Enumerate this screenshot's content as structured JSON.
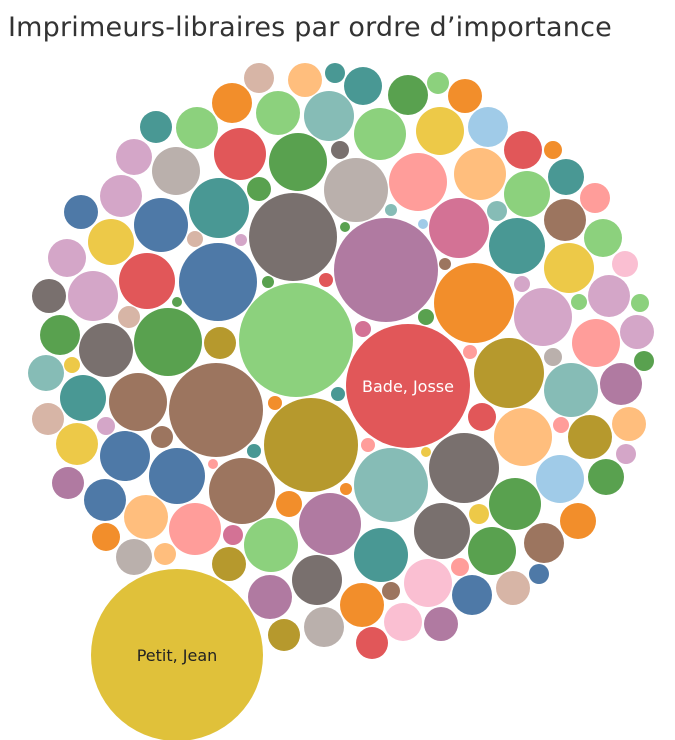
{
  "palette": {
    "blue": "#4e79a7",
    "orange": "#f28e2b",
    "red": "#e15759",
    "teal": "#499894",
    "green": "#59a14f",
    "lightgreen": "#8cd17d",
    "yellow": "#edc948",
    "olive": "#b6992d",
    "purple": "#b07aa1",
    "pink": "#ff9d9a",
    "lightpink": "#fabfd2",
    "brown": "#9c755f",
    "darkbrown": "#79706e",
    "gray": "#bab0ac",
    "seafoam": "#86bcb6",
    "lightblue": "#a0cbe8",
    "peach": "#ffbe7d",
    "magenta": "#d37295",
    "lilac": "#d4a6c8",
    "tan": "#d7b5a6",
    "gold": "#e0c13a"
  },
  "chart_data": {
    "type": "bubble",
    "title": "Imprimeurs-libraires par ordre d’importance",
    "labels": [
      {
        "text": "Petit, Jean",
        "value": 86,
        "color": "gold"
      },
      {
        "text": "Bade, Josse",
        "value": 62,
        "color": "red"
      }
    ],
    "bubbles": [
      {
        "value": 52,
        "color": "purple"
      },
      {
        "value": 57,
        "color": "lightgreen"
      },
      {
        "value": 47,
        "color": "olive"
      },
      {
        "value": 47,
        "color": "brown"
      },
      {
        "value": 44,
        "color": "darkbrown"
      },
      {
        "value": 40,
        "color": "orange"
      },
      {
        "value": 39,
        "color": "blue"
      },
      {
        "value": 37,
        "color": "seafoam"
      },
      {
        "value": 35,
        "color": "olive"
      },
      {
        "value": 35,
        "color": "darkbrown"
      },
      {
        "value": 34,
        "color": "green"
      },
      {
        "value": 33,
        "color": "brown"
      },
      {
        "value": 32,
        "color": "gray"
      },
      {
        "value": 31,
        "color": "purple"
      },
      {
        "value": 30,
        "color": "magenta"
      },
      {
        "value": 30,
        "color": "teal"
      },
      {
        "value": 29,
        "color": "pink"
      },
      {
        "value": 29,
        "color": "peach"
      },
      {
        "value": 29,
        "color": "lilac"
      },
      {
        "value": 29,
        "color": "green"
      },
      {
        "value": 29,
        "color": "brown"
      },
      {
        "value": 28,
        "color": "blue"
      },
      {
        "value": 28,
        "color": "red"
      },
      {
        "value": 28,
        "color": "teal"
      },
      {
        "value": 28,
        "color": "darkbrown"
      },
      {
        "value": 27,
        "color": "lightgreen"
      },
      {
        "value": 27,
        "color": "teal"
      },
      {
        "value": 27,
        "color": "blue"
      },
      {
        "value": 27,
        "color": "seafoam"
      },
      {
        "value": 27,
        "color": "darkbrown"
      },
      {
        "value": 26,
        "color": "pink"
      },
      {
        "value": 26,
        "color": "red"
      },
      {
        "value": 26,
        "color": "green"
      },
      {
        "value": 26,
        "color": "lightgreen"
      },
      {
        "value": 26,
        "color": "peach"
      },
      {
        "value": 25,
        "color": "darkbrown"
      },
      {
        "value": 25,
        "color": "blue"
      },
      {
        "value": 25,
        "color": "yellow"
      },
      {
        "value": 25,
        "color": "seafoam"
      },
      {
        "value": 25,
        "color": "lilac"
      },
      {
        "value": 24,
        "color": "gray"
      },
      {
        "value": 24,
        "color": "lightpink"
      },
      {
        "value": 24,
        "color": "lightblue"
      },
      {
        "value": 24,
        "color": "yellow"
      },
      {
        "value": 24,
        "color": "green"
      },
      {
        "value": 24,
        "color": "pink"
      },
      {
        "value": 23,
        "color": "lightgreen"
      },
      {
        "value": 23,
        "color": "yellow"
      },
      {
        "value": 23,
        "color": "teal"
      },
      {
        "value": 22,
        "color": "peach"
      },
      {
        "value": 22,
        "color": "lightgreen"
      },
      {
        "value": 22,
        "color": "orange"
      },
      {
        "value": 22,
        "color": "purple"
      },
      {
        "value": 22,
        "color": "olive"
      },
      {
        "value": 21,
        "color": "brown"
      },
      {
        "value": 21,
        "color": "lilac"
      },
      {
        "value": 21,
        "color": "lilac"
      },
      {
        "value": 21,
        "color": "lightgreen"
      },
      {
        "value": 21,
        "color": "yellow"
      },
      {
        "value": 21,
        "color": "blue"
      },
      {
        "value": 21,
        "color": "purple"
      },
      {
        "value": 20,
        "color": "green"
      },
      {
        "value": 20,
        "color": "green"
      },
      {
        "value": 20,
        "color": "lightblue"
      },
      {
        "value": 20,
        "color": "brown"
      },
      {
        "value": 20,
        "color": "blue"
      },
      {
        "value": 20,
        "color": "orange"
      },
      {
        "value": 20,
        "color": "gray"
      },
      {
        "value": 19,
        "color": "red"
      },
      {
        "value": 19,
        "color": "teal"
      },
      {
        "value": 19,
        "color": "lightpink"
      },
      {
        "value": 19,
        "color": "lightgreen"
      },
      {
        "value": 19,
        "color": "lilac"
      },
      {
        "value": 18,
        "color": "lilac"
      },
      {
        "value": 18,
        "color": "teal"
      },
      {
        "value": 18,
        "color": "seafoam"
      },
      {
        "value": 18,
        "color": "orange"
      },
      {
        "value": 18,
        "color": "green"
      },
      {
        "value": 18,
        "color": "gray"
      },
      {
        "value": 17,
        "color": "olive"
      },
      {
        "value": 17,
        "color": "peach"
      },
      {
        "value": 17,
        "color": "darkbrown"
      },
      {
        "value": 17,
        "color": "peach"
      },
      {
        "value": 17,
        "color": "lilac"
      },
      {
        "value": 17,
        "color": "blue"
      },
      {
        "value": 17,
        "color": "orange"
      },
      {
        "value": 17,
        "color": "tan"
      },
      {
        "value": 17,
        "color": "purple"
      },
      {
        "value": 16,
        "color": "olive"
      },
      {
        "value": 16,
        "color": "tan"
      },
      {
        "value": 16,
        "color": "olive"
      },
      {
        "value": 16,
        "color": "teal"
      },
      {
        "value": 16,
        "color": "purple"
      },
      {
        "value": 16,
        "color": "red"
      },
      {
        "value": 16,
        "color": "yellow"
      },
      {
        "value": 16,
        "color": "olive"
      },
      {
        "value": 16,
        "color": "magenta"
      },
      {
        "value": 16,
        "color": "yellow"
      },
      {
        "value": 16,
        "color": "blue"
      },
      {
        "value": 15,
        "color": "tan"
      },
      {
        "value": 15,
        "color": "pink"
      },
      {
        "value": 15,
        "color": "lightblue"
      },
      {
        "value": 15,
        "color": "green"
      },
      {
        "value": 15,
        "color": "lightgreen"
      },
      {
        "value": 15,
        "color": "magenta"
      },
      {
        "value": 15,
        "color": "olive"
      },
      {
        "value": 15,
        "color": "purple"
      },
      {
        "value": 15,
        "color": "red"
      },
      {
        "value": 15,
        "color": "olive"
      },
      {
        "value": 15,
        "color": "green"
      },
      {
        "value": 15,
        "color": "blue"
      },
      {
        "value": 15,
        "color": "yellow"
      },
      {
        "value": 14,
        "color": "red"
      },
      {
        "value": 14,
        "color": "orange"
      },
      {
        "value": 14,
        "color": "peach"
      },
      {
        "value": 14,
        "color": "darkbrown"
      },
      {
        "value": 14,
        "color": "lightgreen"
      },
      {
        "value": 14,
        "color": "seafoam"
      },
      {
        "value": 14,
        "color": "olive"
      },
      {
        "value": 14,
        "color": "brown"
      },
      {
        "value": 14,
        "color": "magenta"
      },
      {
        "value": 14,
        "color": "magenta"
      },
      {
        "value": 14,
        "color": "teal"
      },
      {
        "value": 13,
        "color": "orange"
      },
      {
        "value": 13,
        "color": "lightpink"
      },
      {
        "value": 13,
        "color": "lightgreen"
      },
      {
        "value": 13,
        "color": "lightblue"
      },
      {
        "value": 13,
        "color": "teal"
      },
      {
        "value": 13,
        "color": "lilac"
      },
      {
        "value": 13,
        "color": "pink"
      },
      {
        "value": 13,
        "color": "tan"
      },
      {
        "value": 13,
        "color": "teal"
      },
      {
        "value": 13,
        "color": "tan"
      },
      {
        "value": 12,
        "color": "green"
      },
      {
        "value": 12,
        "color": "olive"
      },
      {
        "value": 12,
        "color": "green"
      },
      {
        "value": 12,
        "color": "red"
      },
      {
        "value": 12,
        "color": "red"
      },
      {
        "value": 12,
        "color": "gray"
      },
      {
        "value": 12,
        "color": "darkbrown"
      },
      {
        "value": 12,
        "color": "tan"
      },
      {
        "value": 12,
        "color": "gray"
      },
      {
        "value": 12,
        "color": "pink"
      },
      {
        "value": 12,
        "color": "purple"
      },
      {
        "value": 12,
        "color": "purple"
      },
      {
        "value": 11,
        "color": "brown"
      },
      {
        "value": 11,
        "color": "tan"
      },
      {
        "value": 11,
        "color": "peach"
      },
      {
        "value": 11,
        "color": "lightgreen"
      },
      {
        "value": 11,
        "color": "orange"
      },
      {
        "value": 11,
        "color": "blue"
      },
      {
        "value": 11,
        "color": "lightpink"
      },
      {
        "value": 11,
        "color": "peach"
      },
      {
        "value": 11,
        "color": "green"
      },
      {
        "value": 11,
        "color": "tan"
      },
      {
        "value": 11,
        "color": "pink"
      },
      {
        "value": 11,
        "color": "yellow"
      },
      {
        "value": 11,
        "color": "green"
      },
      {
        "value": 11,
        "color": "red"
      },
      {
        "value": 10,
        "color": "yellow"
      },
      {
        "value": 10,
        "color": "magenta"
      },
      {
        "value": 10,
        "color": "seafoam"
      },
      {
        "value": 10,
        "color": "teal"
      },
      {
        "value": 10,
        "color": "green"
      },
      {
        "value": 10,
        "color": "lilac"
      },
      {
        "value": 10,
        "color": "blue"
      },
      {
        "value": 10,
        "color": "purple"
      },
      {
        "value": 10,
        "color": "lilac"
      },
      {
        "value": 10,
        "color": "yellow"
      },
      {
        "value": 9,
        "color": "gray"
      },
      {
        "value": 9,
        "color": "darkbrown"
      },
      {
        "value": 9,
        "color": "lilac"
      },
      {
        "value": 9,
        "color": "pink"
      },
      {
        "value": 9,
        "color": "brown"
      },
      {
        "value": 9,
        "color": "orange"
      },
      {
        "value": 9,
        "color": "lightgreen"
      },
      {
        "value": 9,
        "color": "gray"
      },
      {
        "value": 9,
        "color": "seafoam"
      },
      {
        "value": 9,
        "color": "pink"
      },
      {
        "value": 8,
        "color": "magenta"
      },
      {
        "value": 8,
        "color": "green"
      },
      {
        "value": 8,
        "color": "tan"
      },
      {
        "value": 8,
        "color": "lilac"
      },
      {
        "value": 8,
        "color": "pink"
      },
      {
        "value": 8,
        "color": "lightgreen"
      },
      {
        "value": 8,
        "color": "yellow"
      },
      {
        "value": 7,
        "color": "teal"
      },
      {
        "value": 7,
        "color": "red"
      },
      {
        "value": 7,
        "color": "orange"
      },
      {
        "value": 7,
        "color": "pink"
      },
      {
        "value": 7,
        "color": "pink"
      },
      {
        "value": 7,
        "color": "teal"
      },
      {
        "value": 6,
        "color": "green"
      },
      {
        "value": 6,
        "color": "orange"
      },
      {
        "value": 6,
        "color": "brown"
      },
      {
        "value": 6,
        "color": "lilac"
      },
      {
        "value": 6,
        "color": "seafoam"
      },
      {
        "value": 5,
        "color": "yellow"
      },
      {
        "value": 5,
        "color": "green"
      },
      {
        "value": 5,
        "color": "lightblue"
      },
      {
        "value": 5,
        "color": "pink"
      },
      {
        "value": 5,
        "color": "green"
      }
    ]
  }
}
